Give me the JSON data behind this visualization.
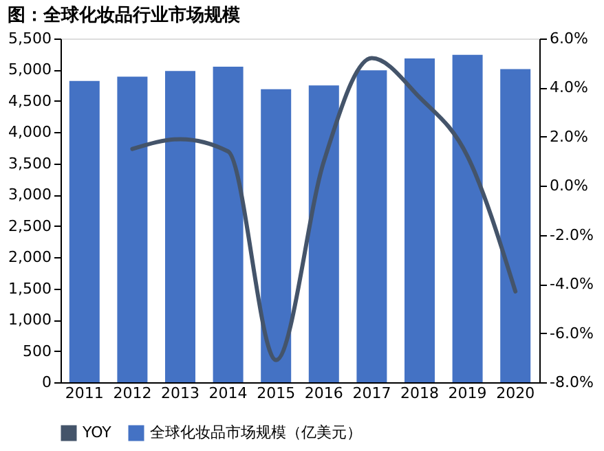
{
  "chart_data": {
    "type": "bar",
    "title": "图：全球化妆品行业市场规模",
    "categories": [
      "2011",
      "2012",
      "2013",
      "2014",
      "2015",
      "2016",
      "2017",
      "2018",
      "2019",
      "2020"
    ],
    "series": [
      {
        "name": "YOY",
        "type": "line",
        "axis": "y2",
        "color": "#44546a",
        "values": [
          null,
          1.5,
          1.9,
          1.4,
          -7.1,
          1.0,
          5.2,
          3.6,
          1.2,
          -4.3
        ]
      },
      {
        "name": "全球化妆品市场规模（亿美元）",
        "color": "#4472c4",
        "values": [
          4820,
          4890,
          4980,
          5050,
          4690,
          4750,
          4990,
          5180,
          5240,
          5010
        ]
      }
    ],
    "ylim": [
      0,
      5500
    ],
    "yticks": [
      {
        "value": 0,
        "label": "0"
      },
      {
        "value": 500,
        "label": "500"
      },
      {
        "value": 1000,
        "label": "1,000"
      },
      {
        "value": 1500,
        "label": "1,500"
      },
      {
        "value": 2000,
        "label": "2,000"
      },
      {
        "value": 2500,
        "label": "2,500"
      },
      {
        "value": 3000,
        "label": "3,000"
      },
      {
        "value": 3500,
        "label": "3,500"
      },
      {
        "value": 4000,
        "label": "4,000"
      },
      {
        "value": 4500,
        "label": "4,500"
      },
      {
        "value": 5000,
        "label": "5,000"
      },
      {
        "value": 5500,
        "label": "5,500"
      }
    ],
    "y2lim": [
      -8,
      6
    ],
    "y2ticks": [
      {
        "value": -8,
        "label": "-8.0%"
      },
      {
        "value": -6,
        "label": "-6.0%"
      },
      {
        "value": -4,
        "label": "-4.0%"
      },
      {
        "value": -2,
        "label": "-2.0%"
      },
      {
        "value": 0,
        "label": "0.0%"
      },
      {
        "value": 2,
        "label": "2.0%"
      },
      {
        "value": 4,
        "label": "4.0%"
      },
      {
        "value": 6,
        "label": "6.0%"
      }
    ],
    "grid": false,
    "legend": "bottom"
  }
}
